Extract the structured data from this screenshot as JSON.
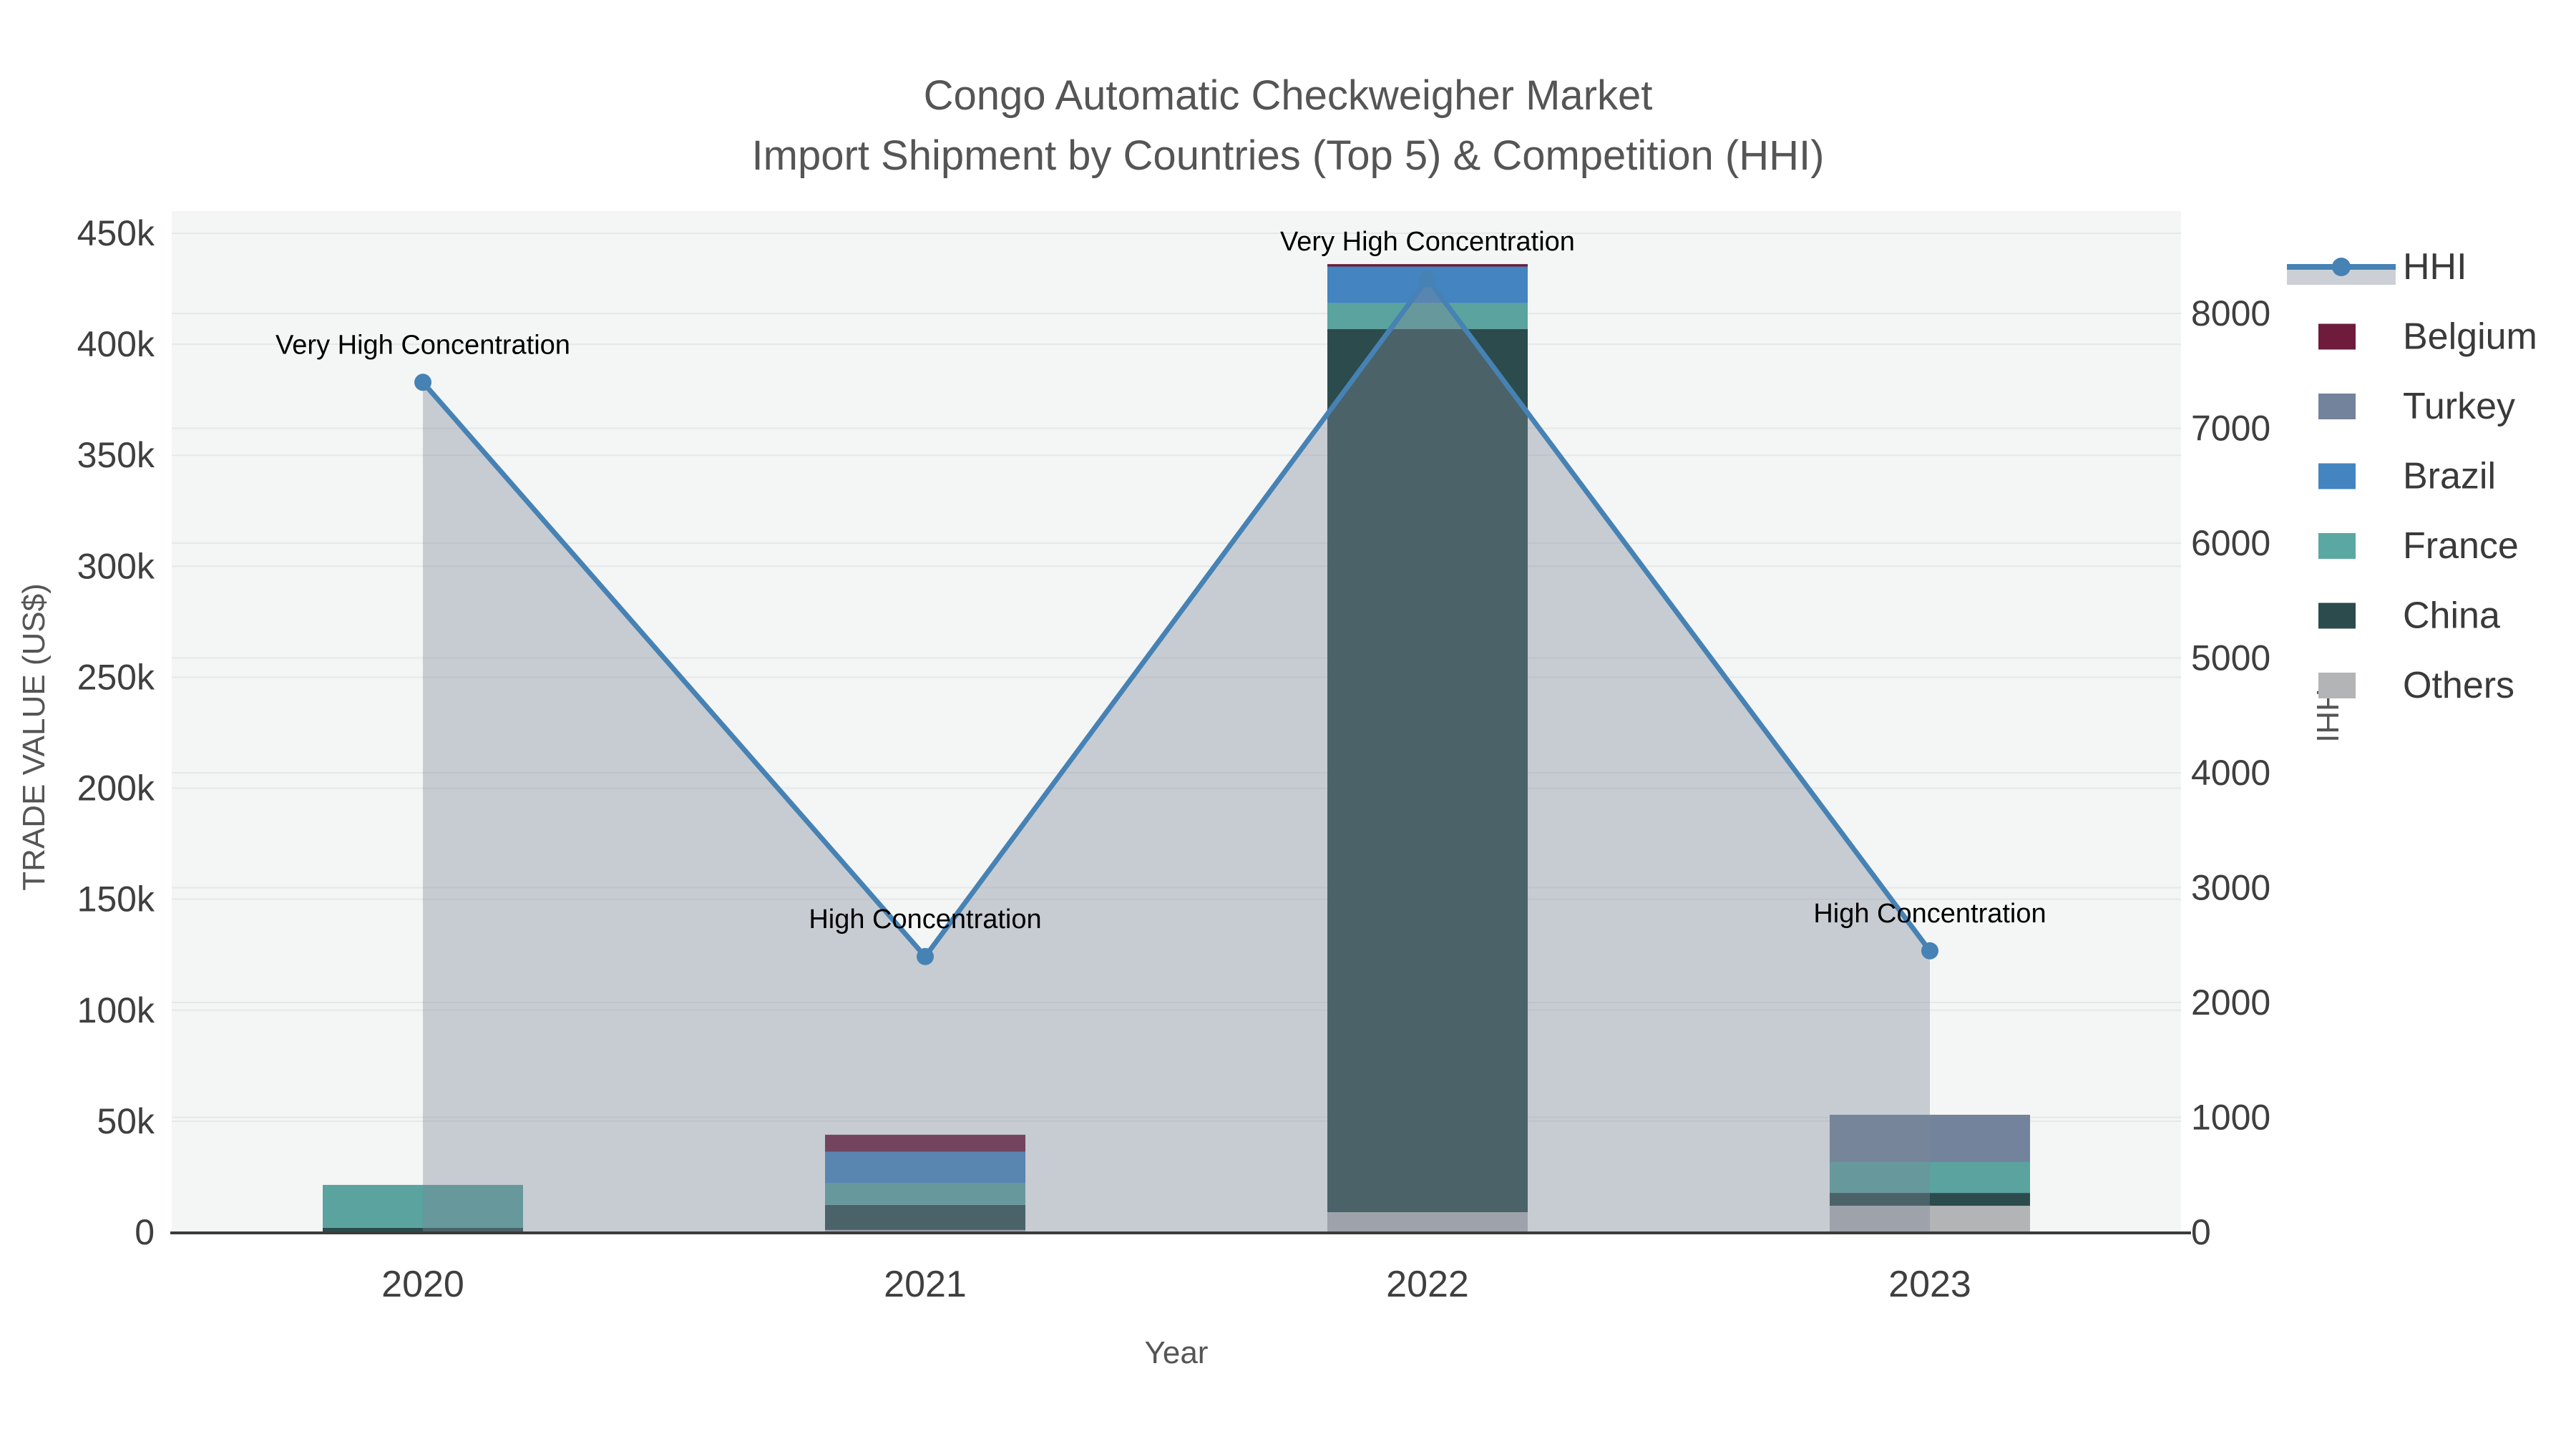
{
  "title": {
    "line1": "Congo Automatic Checkweigher Market",
    "line2": "Import Shipment by Countries (Top 5) & Competition (HHI)"
  },
  "chart_data": {
    "type": "combo: stacked-bar (left axis) + line-with-area (right axis)",
    "categories": [
      "2020",
      "2021",
      "2022",
      "2023"
    ],
    "bar_series_bottom_to_top": [
      {
        "name": "Others",
        "color": "#b2b4b6",
        "values": [
          0,
          1000,
          9000,
          11900
        ]
      },
      {
        "name": "China",
        "color": "#2c4b4c",
        "values": [
          2000,
          11300,
          397900,
          5800
        ]
      },
      {
        "name": "France",
        "color": "#5aa39f",
        "values": [
          19300,
          9700,
          11600,
          13900
        ]
      },
      {
        "name": "Brazil",
        "color": "#4384c1",
        "values": [
          0,
          14200,
          16500,
          0
        ]
      },
      {
        "name": "Turkey",
        "color": "#72839b",
        "values": [
          0,
          0,
          0,
          21300
        ]
      },
      {
        "name": "Belgium",
        "color": "#6e1b3c",
        "values": [
          0,
          7700,
          1100,
          0
        ]
      }
    ],
    "line_series": {
      "name": "HHI",
      "color": "#4682b4",
      "area_fill": "rgba(125,137,152,0.38)",
      "values": [
        7400,
        2400,
        8300,
        2450
      ]
    },
    "annotations": [
      {
        "category": "2020",
        "text": "Very High Concentration"
      },
      {
        "category": "2021",
        "text": "High Concentration"
      },
      {
        "category": "2022",
        "text": "Very High Concentration"
      },
      {
        "category": "2023",
        "text": "High Concentration"
      }
    ],
    "xlabel": "Year",
    "ylabel_left": "TRADE VALUE (US$)",
    "ylabel_right": "HHI",
    "ylim_left": [
      0,
      462000
    ],
    "ylim_right": [
      0,
      8900
    ],
    "left_ticks": [
      {
        "v": 0,
        "label": "0"
      },
      {
        "v": 50000,
        "label": "50k"
      },
      {
        "v": 100000,
        "label": "100k"
      },
      {
        "v": 150000,
        "label": "150k"
      },
      {
        "v": 200000,
        "label": "200k"
      },
      {
        "v": 250000,
        "label": "250k"
      },
      {
        "v": 300000,
        "label": "300k"
      },
      {
        "v": 350000,
        "label": "350k"
      },
      {
        "v": 400000,
        "label": "400k"
      },
      {
        "v": 450000,
        "label": "450k"
      }
    ],
    "right_ticks": [
      {
        "v": 0,
        "label": "0"
      },
      {
        "v": 1000,
        "label": "1000"
      },
      {
        "v": 2000,
        "label": "2000"
      },
      {
        "v": 3000,
        "label": "3000"
      },
      {
        "v": 4000,
        "label": "4000"
      },
      {
        "v": 5000,
        "label": "5000"
      },
      {
        "v": 6000,
        "label": "6000"
      },
      {
        "v": 7000,
        "label": "7000"
      },
      {
        "v": 8000,
        "label": "8000"
      }
    ],
    "grid": true,
    "legend_position": "right"
  },
  "legend": {
    "items": [
      {
        "label": "HHI",
        "type": "line",
        "color": "#4682b4"
      },
      {
        "label": "Belgium",
        "type": "swatch",
        "color": "#6e1b3c"
      },
      {
        "label": "Turkey",
        "type": "swatch",
        "color": "#72839b"
      },
      {
        "label": "Brazil",
        "type": "swatch",
        "color": "#4384c1"
      },
      {
        "label": "France",
        "type": "swatch",
        "color": "#5ba8a2"
      },
      {
        "label": "China",
        "type": "swatch",
        "color": "#2c4b4c"
      },
      {
        "label": "Others",
        "type": "swatch",
        "color": "#b2b4b6"
      }
    ]
  },
  "colors": {
    "background": "#ffffff",
    "plot_background": "#f4f5f5",
    "gridline": "#e6e8e8",
    "axis_line": "#3b3b3b",
    "hhi_legend_band": "#ccd0d6"
  }
}
